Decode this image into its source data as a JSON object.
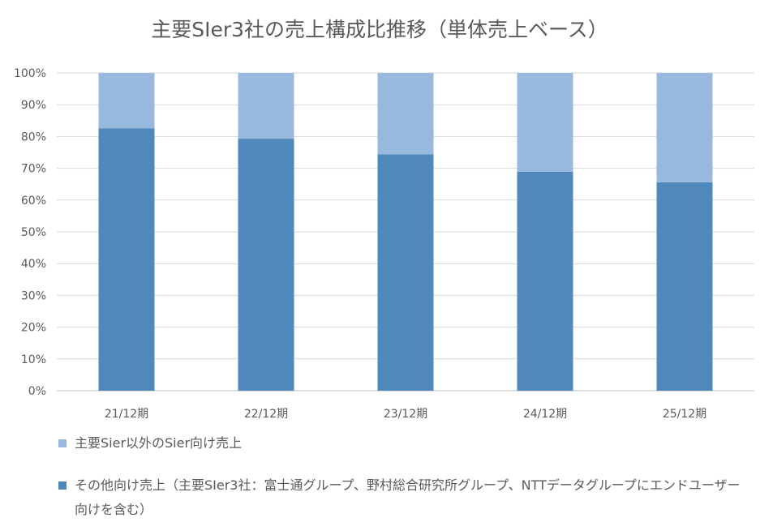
{
  "chart_data": {
    "type": "bar",
    "stacked": true,
    "title": "主要SIer3社の売上構成比推移（単体売上ベース）",
    "categories": [
      "21/12期",
      "22/12期",
      "23/12期",
      "24/12期",
      "25/12期"
    ],
    "series": [
      {
        "name": "その他向け売上（主要SIer3社：富士通グループ、野村総合研究所グループ、NTTデータグループにエンドユーザー向けを含む）",
        "values": [
          0.826,
          0.793,
          0.744,
          0.689,
          0.656
        ],
        "color": "#4f88bb"
      },
      {
        "name": "主要Sier以外のSier向け売上",
        "values": [
          0.174,
          0.207,
          0.256,
          0.311,
          0.344
        ],
        "color": "#98b8de"
      }
    ],
    "ylim": [
      0,
      1
    ],
    "yticks": [
      "0%",
      "10%",
      "20%",
      "30%",
      "40%",
      "50%",
      "60%",
      "70%",
      "80%",
      "90%",
      "100%"
    ],
    "grid": true,
    "legend_position": "bottom",
    "gridColor": "#d9d9d9",
    "textColor": "#595959"
  }
}
